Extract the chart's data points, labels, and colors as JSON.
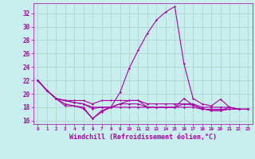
{
  "xlabel": "Windchill (Refroidissement éolien,°C)",
  "xlim": [
    -0.5,
    23.5
  ],
  "ylim": [
    15.5,
    33.5
  ],
  "yticks": [
    16,
    18,
    20,
    22,
    24,
    26,
    28,
    30,
    32
  ],
  "xticks": [
    0,
    1,
    2,
    3,
    4,
    5,
    6,
    7,
    8,
    9,
    10,
    11,
    12,
    13,
    14,
    15,
    16,
    17,
    18,
    19,
    20,
    21,
    22,
    23
  ],
  "bg_color": "#c8eeed",
  "grid_color": "#b0d8d0",
  "line_color": "#aa00aa",
  "lines": [
    [
      22.0,
      20.5,
      19.3,
      18.5,
      18.2,
      18.0,
      16.3,
      17.5,
      18.0,
      18.5,
      19.0,
      19.0,
      18.0,
      18.0,
      18.0,
      18.0,
      19.3,
      18.3,
      17.8,
      17.5,
      17.5,
      18.0,
      17.7,
      17.7
    ],
    [
      22.0,
      20.5,
      19.3,
      18.2,
      18.2,
      17.8,
      16.3,
      17.3,
      18.0,
      20.2,
      23.8,
      26.5,
      29.0,
      31.0,
      32.2,
      33.0,
      24.5,
      19.3,
      18.5,
      18.2,
      19.2,
      18.0,
      17.7,
      17.7
    ],
    [
      22.0,
      20.5,
      19.3,
      19.0,
      19.0,
      19.0,
      18.5,
      19.0,
      19.0,
      19.0,
      19.0,
      19.0,
      18.5,
      18.5,
      18.5,
      18.5,
      18.5,
      18.5,
      18.0,
      18.0,
      18.0,
      18.0,
      17.7,
      17.7
    ],
    [
      22.0,
      20.5,
      19.3,
      19.0,
      18.7,
      18.5,
      18.0,
      18.0,
      18.0,
      18.0,
      18.0,
      18.0,
      18.0,
      18.0,
      18.0,
      18.0,
      18.0,
      18.0,
      17.7,
      17.7,
      17.7,
      17.7,
      17.7,
      17.7
    ],
    [
      22.0,
      20.5,
      19.3,
      19.0,
      18.7,
      18.5,
      17.8,
      18.0,
      18.0,
      18.5,
      18.5,
      18.5,
      18.0,
      18.0,
      18.0,
      18.0,
      18.5,
      18.3,
      17.8,
      17.5,
      17.5,
      17.7,
      17.7,
      17.7
    ]
  ],
  "xlabel_fontsize": 6,
  "xtick_fontsize": 4.2,
  "ytick_fontsize": 5.5
}
